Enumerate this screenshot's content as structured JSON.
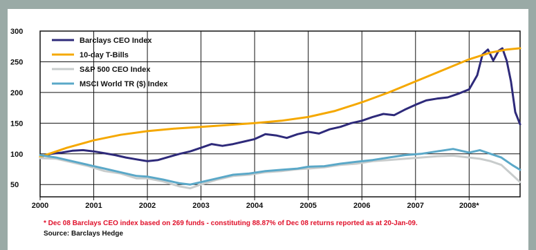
{
  "chart_data": {
    "type": "line",
    "title": "",
    "xlabel": "",
    "ylabel": "",
    "ylim": [
      30,
      300
    ],
    "yticks": [
      50,
      100,
      150,
      200,
      250,
      300
    ],
    "xlim": [
      2000,
      2008.95
    ],
    "xticks": [
      {
        "value": 2000,
        "label": "2000"
      },
      {
        "value": 2001,
        "label": "2001"
      },
      {
        "value": 2002,
        "label": "2002"
      },
      {
        "value": 2003,
        "label": "2003"
      },
      {
        "value": 2004,
        "label": "2004"
      },
      {
        "value": 2005,
        "label": "2005"
      },
      {
        "value": 2006,
        "label": "2006"
      },
      {
        "value": 2007,
        "label": "2007"
      },
      {
        "value": 2008,
        "label": "2008*"
      }
    ],
    "grid": true,
    "legend_position": "top-left",
    "series": [
      {
        "name": "Barclays CEO Index",
        "color": "#2e2a7a",
        "points": [
          [
            2000,
            95
          ],
          [
            2000.2,
            100
          ],
          [
            2000.4,
            102
          ],
          [
            2000.6,
            105
          ],
          [
            2000.8,
            106
          ],
          [
            2001,
            104
          ],
          [
            2001.2,
            101
          ],
          [
            2001.4,
            98
          ],
          [
            2001.6,
            94
          ],
          [
            2001.8,
            91
          ],
          [
            2002,
            88
          ],
          [
            2002.2,
            90
          ],
          [
            2002.4,
            95
          ],
          [
            2002.6,
            100
          ],
          [
            2002.8,
            104
          ],
          [
            2003,
            110
          ],
          [
            2003.2,
            116
          ],
          [
            2003.4,
            113
          ],
          [
            2003.6,
            116
          ],
          [
            2003.8,
            120
          ],
          [
            2004,
            124
          ],
          [
            2004.2,
            132
          ],
          [
            2004.4,
            130
          ],
          [
            2004.6,
            126
          ],
          [
            2004.8,
            132
          ],
          [
            2005,
            136
          ],
          [
            2005.2,
            133
          ],
          [
            2005.4,
            140
          ],
          [
            2005.6,
            144
          ],
          [
            2005.8,
            150
          ],
          [
            2006,
            154
          ],
          [
            2006.2,
            160
          ],
          [
            2006.4,
            165
          ],
          [
            2006.6,
            163
          ],
          [
            2006.8,
            172
          ],
          [
            2007,
            180
          ],
          [
            2007.2,
            187
          ],
          [
            2007.4,
            190
          ],
          [
            2007.6,
            192
          ],
          [
            2007.8,
            198
          ],
          [
            2008,
            205
          ],
          [
            2008.15,
            228
          ],
          [
            2008.25,
            262
          ],
          [
            2008.35,
            270
          ],
          [
            2008.45,
            252
          ],
          [
            2008.55,
            268
          ],
          [
            2008.62,
            272
          ],
          [
            2008.7,
            252
          ],
          [
            2008.78,
            218
          ],
          [
            2008.86,
            168
          ],
          [
            2008.95,
            148
          ]
        ]
      },
      {
        "name": "10-day T-Bills",
        "color": "#f5a800",
        "points": [
          [
            2000,
            95
          ],
          [
            2000.5,
            110
          ],
          [
            2001,
            122
          ],
          [
            2001.5,
            131
          ],
          [
            2002,
            137
          ],
          [
            2002.5,
            141
          ],
          [
            2003,
            144
          ],
          [
            2003.5,
            147
          ],
          [
            2004,
            150
          ],
          [
            2004.5,
            154
          ],
          [
            2005,
            160
          ],
          [
            2005.5,
            170
          ],
          [
            2006,
            184
          ],
          [
            2006.5,
            200
          ],
          [
            2007,
            218
          ],
          [
            2007.5,
            236
          ],
          [
            2008,
            254
          ],
          [
            2008.4,
            265
          ],
          [
            2008.7,
            270
          ],
          [
            2008.95,
            272
          ]
        ]
      },
      {
        "name": "S&P 500 CEO Index",
        "color": "#c8cccc",
        "points": [
          [
            2000,
            93
          ],
          [
            2000.3,
            92
          ],
          [
            2000.6,
            86
          ],
          [
            2000.9,
            80
          ],
          [
            2001.2,
            72
          ],
          [
            2001.5,
            68
          ],
          [
            2001.8,
            60
          ],
          [
            2002,
            60
          ],
          [
            2002.3,
            55
          ],
          [
            2002.6,
            47
          ],
          [
            2002.8,
            44
          ],
          [
            2003,
            50
          ],
          [
            2003.3,
            58
          ],
          [
            2003.6,
            64
          ],
          [
            2003.9,
            66
          ],
          [
            2004.2,
            70
          ],
          [
            2004.5,
            72
          ],
          [
            2004.8,
            75
          ],
          [
            2005,
            76
          ],
          [
            2005.3,
            78
          ],
          [
            2005.6,
            82
          ],
          [
            2005.9,
            84
          ],
          [
            2006.2,
            88
          ],
          [
            2006.5,
            90
          ],
          [
            2006.8,
            92
          ],
          [
            2007.1,
            94
          ],
          [
            2007.4,
            96
          ],
          [
            2007.7,
            97
          ],
          [
            2008,
            94
          ],
          [
            2008.2,
            92
          ],
          [
            2008.4,
            88
          ],
          [
            2008.6,
            82
          ],
          [
            2008.8,
            66
          ],
          [
            2008.95,
            54
          ]
        ]
      },
      {
        "name": "MSCI World TR ($) Index",
        "color": "#5aa8c8",
        "points": [
          [
            2000,
            98
          ],
          [
            2000.3,
            94
          ],
          [
            2000.6,
            88
          ],
          [
            2000.9,
            82
          ],
          [
            2001.2,
            76
          ],
          [
            2001.5,
            70
          ],
          [
            2001.8,
            64
          ],
          [
            2002,
            63
          ],
          [
            2002.3,
            58
          ],
          [
            2002.6,
            52
          ],
          [
            2002.8,
            50
          ],
          [
            2003,
            54
          ],
          [
            2003.3,
            60
          ],
          [
            2003.6,
            66
          ],
          [
            2003.9,
            68
          ],
          [
            2004.2,
            72
          ],
          [
            2004.5,
            74
          ],
          [
            2004.8,
            76
          ],
          [
            2005,
            79
          ],
          [
            2005.3,
            80
          ],
          [
            2005.6,
            84
          ],
          [
            2005.9,
            87
          ],
          [
            2006.2,
            90
          ],
          [
            2006.5,
            94
          ],
          [
            2006.8,
            98
          ],
          [
            2007.1,
            100
          ],
          [
            2007.4,
            104
          ],
          [
            2007.7,
            108
          ],
          [
            2008,
            102
          ],
          [
            2008.2,
            106
          ],
          [
            2008.4,
            100
          ],
          [
            2008.6,
            94
          ],
          [
            2008.8,
            82
          ],
          [
            2008.95,
            74
          ]
        ]
      }
    ]
  },
  "footnote": "* Dec 08 Barclays CEO index based on 269 funds - constituting 88.87% of Dec 08 returns reported as at 20-Jan-09.",
  "source": "Source: Barclays Hedge"
}
